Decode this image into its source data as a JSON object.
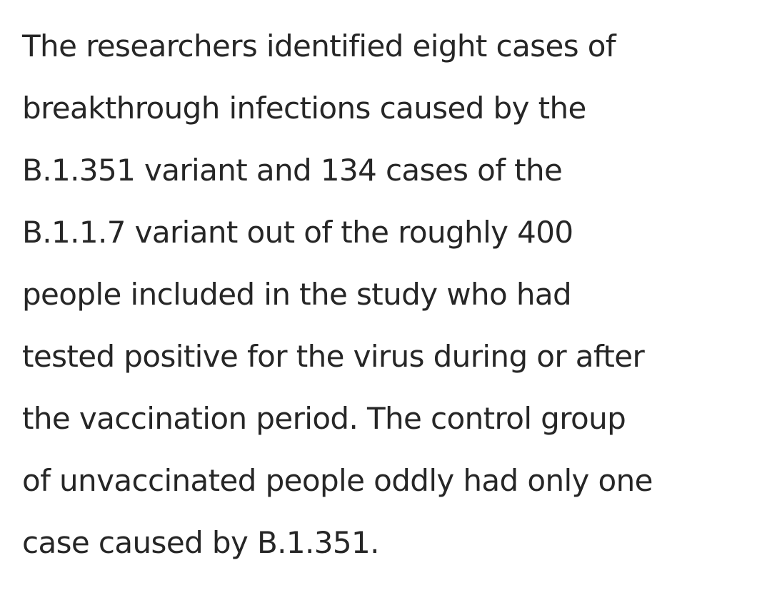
{
  "article": {
    "lines": [
      "The researchers identified eight cases of",
      "breakthrough infections caused by the",
      "B.1.351 variant and 134 cases of the",
      "B.1.1.7 variant out of the roughly 400",
      "people included in the study who had",
      "tested positive for the virus during or after",
      "the vaccination period. The control group",
      "of unvaccinated people oddly had only one",
      "case caused by B.1.351."
    ]
  }
}
